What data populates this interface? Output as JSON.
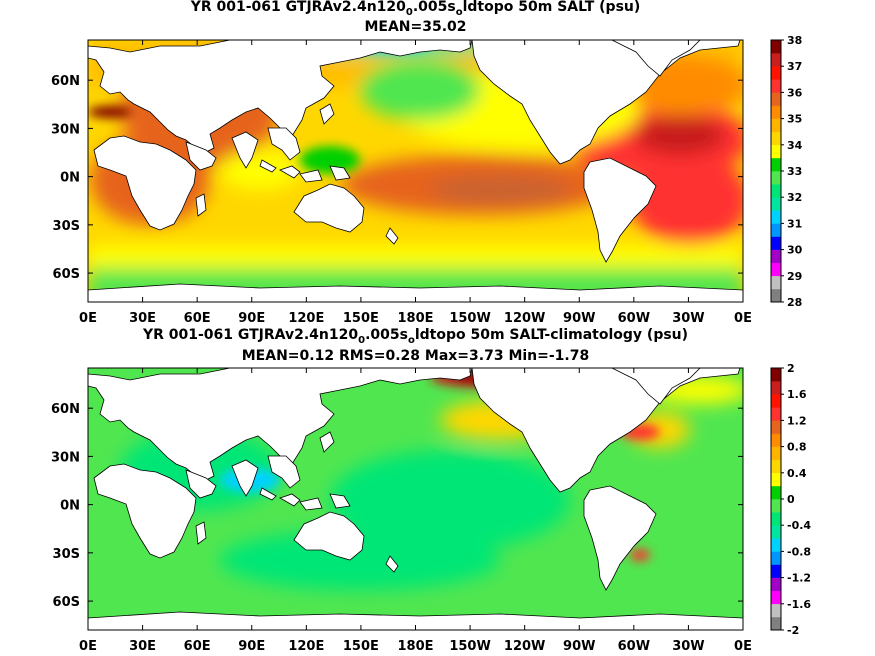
{
  "panels": [
    {
      "title_parts": [
        "YR 001-061 GTJRAv2.4n120",
        "0",
        ".005s",
        "o",
        "ldtopo 50m SALT (psu)"
      ],
      "stats": "MEAN=35.02",
      "colorbar_ticks": [
        "38",
        "37",
        "36",
        "35",
        "34",
        "33",
        "32",
        "31",
        "30",
        "29",
        "28"
      ],
      "colorbar_colors": [
        "#808080",
        "#c0c0c0",
        "#ff00ff",
        "#a000c8",
        "#0000ff",
        "#0096ff",
        "#00d2ff",
        "#00e6a0",
        "#00e676",
        "#50e650",
        "#00d000",
        "#ffff00",
        "#ffd700",
        "#ffb400",
        "#ff8c00",
        "#e6641e",
        "#ff3232",
        "#ff1400",
        "#c81e1e",
        "#800000"
      ],
      "colorbar_colors_comment": "",
      "value_range": [
        28,
        38
      ]
    },
    {
      "title_parts": [
        "YR 001-061 GTJRAv2.4n120",
        "0",
        ".005s",
        "o",
        "ldtopo 50m SALT-climatology (psu)"
      ],
      "stats": "MEAN=0.12   RMS=0.28   Max=3.73   Min=-1.78",
      "colorbar_ticks": [
        "2",
        "1.6",
        "1.2",
        "0.8",
        "0.4",
        "0",
        "-0.4",
        "-0.8",
        "-1.2",
        "-1.6",
        "-2"
      ],
      "colorbar_colors": [
        "#808080",
        "#c0c0c0",
        "#ff00ff",
        "#a000c8",
        "#0000ff",
        "#0096ff",
        "#00d2ff",
        "#00e6a0",
        "#00e676",
        "#50e650",
        "#00d000",
        "#ffff00",
        "#ffd700",
        "#ffb400",
        "#ff8c00",
        "#e6641e",
        "#ff3232",
        "#ff1400",
        "#c81e1e",
        "#800000"
      ],
      "value_range": [
        -2,
        2
      ]
    }
  ],
  "x_ticks": [
    "0E",
    "30E",
    "60E",
    "90E",
    "120E",
    "150E",
    "180E",
    "150W",
    "120W",
    "90W",
    "60W",
    "30W",
    "0E"
  ],
  "y_ticks": [
    "60N",
    "30N",
    "0N",
    "30S",
    "60S"
  ],
  "chart_data": [
    {
      "type": "heatmap",
      "title": "YR 001-061 GTJRAv2.4n120_0.005s_oldtopo 50m SALT (psu)",
      "subtitle": "MEAN=35.02",
      "xlim": [
        0,
        360
      ],
      "ylim": [
        -78,
        85
      ],
      "colorbar_range": [
        28,
        38
      ],
      "units": "psu",
      "regions": [
        {
          "lon": 40,
          "lat": 15,
          "value": 36.5
        },
        {
          "lon": 60,
          "lat": 25,
          "value": 36.0
        },
        {
          "lon": 90,
          "lat": 15,
          "value": 33.5
        },
        {
          "lon": 110,
          "lat": 10,
          "value": 34.0
        },
        {
          "lon": 180,
          "lat": -10,
          "value": 35.8
        },
        {
          "lon": 210,
          "lat": -18,
          "value": 36.0
        },
        {
          "lon": 160,
          "lat": 35,
          "value": 34.8
        },
        {
          "lon": 190,
          "lat": 50,
          "value": 33.0
        },
        {
          "lon": 320,
          "lat": 25,
          "value": 37.0
        },
        {
          "lon": 330,
          "lat": -15,
          "value": 36.8
        },
        {
          "lon": 320,
          "lat": 60,
          "value": 35.0
        },
        {
          "lon": 200,
          "lat": -60,
          "value": 34.2
        },
        {
          "lon": 90,
          "lat": -35,
          "value": 35.3
        }
      ]
    },
    {
      "type": "heatmap",
      "title": "YR 001-061 GTJRAv2.4n120_0.005s_oldtopo 50m SALT-climatology (psu)",
      "subtitle": "MEAN=0.12   RMS=0.28   Max=3.73   Min=-1.78",
      "xlim": [
        0,
        360
      ],
      "ylim": [
        -78,
        85
      ],
      "colorbar_range": [
        -2,
        2
      ],
      "units": "psu",
      "stats": {
        "mean": 0.12,
        "rms": 0.28,
        "max": 3.73,
        "min": -1.78
      },
      "regions": [
        {
          "lon": 200,
          "lat": 80,
          "value": 2.0
        },
        {
          "lon": 205,
          "lat": 58,
          "value": 0.8
        },
        {
          "lon": 300,
          "lat": 42,
          "value": 1.6
        },
        {
          "lon": 305,
          "lat": -38,
          "value": 1.0
        },
        {
          "lon": 270,
          "lat": 63,
          "value": -0.9
        },
        {
          "lon": 180,
          "lat": 0,
          "value": 0.0
        },
        {
          "lon": 90,
          "lat": -35,
          "value": 0.0
        },
        {
          "lon": 345,
          "lat": 75,
          "value": 0.6
        }
      ]
    }
  ]
}
